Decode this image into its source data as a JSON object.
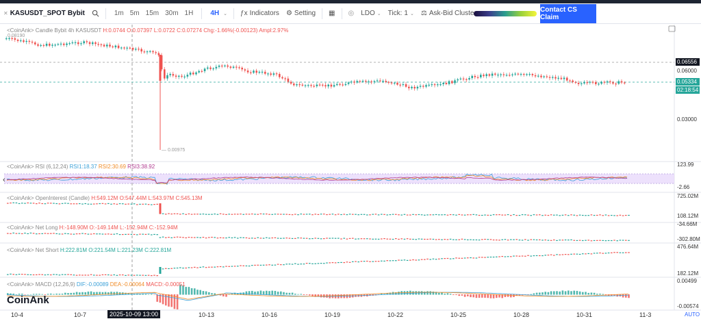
{
  "toolbar": {
    "symbol": "KASUSDT_SPOT",
    "exchange": "Bybit",
    "timeframes": [
      "1m",
      "5m",
      "15m",
      "30m",
      "1H",
      "4H"
    ],
    "active_timeframe": "4H",
    "indicators_label": "Indicators",
    "setting_label": "Setting",
    "ldo_label": "LDO",
    "tick_label": "Tick:",
    "tick_value": "1",
    "askbid_label": "Ask-Bid Cluster",
    "cta_label": "Contact CS Claim"
  },
  "main_pane": {
    "legend_source": "<CoinAnk> Candle",
    "legend_info": "Bybit 4h KASUSDT",
    "h": "H:0.0744",
    "o": "O:0.07397",
    "l": "L:0.0722",
    "c": "C:0.07274",
    "chg": "Chg:-1.66%(-0.00123)",
    "ampl": "Ampl:2.97%",
    "high_label": "0.08190",
    "low_label": "0.00975",
    "axis": [
      "0.06000",
      "0.03000"
    ],
    "tag_high": "0.06556",
    "tag_last": "0.05334",
    "tag_countdown": "02:18:54"
  },
  "rsi_pane": {
    "legend_source": "<CoinAnk> RSI",
    "params": "(6,12,24)",
    "rsi1": "RSI1:18.37",
    "rsi2": "RSI2:30.69",
    "rsi3": "RSI3:38.92",
    "axis_top": "123.99",
    "axis_bottom": "-2.66"
  },
  "oi_pane": {
    "legend_source": "<CoinAnk> OpenInterest (Candle)",
    "h": "H:549.12M",
    "o": "O:547.44M",
    "l": "L:543.97M",
    "c": "C:545.13M",
    "axis_top": "725.02M",
    "axis_bottom": "108.12M"
  },
  "netlong_pane": {
    "legend_source": "<CoinAnk> Net Long",
    "h": "H:-148.90M",
    "o": "O:-149.14M",
    "l": "L:-152.94M",
    "c": "C:-152.94M",
    "axis_top": "-34.66M",
    "axis_bottom": "-302.80M"
  },
  "netshort_pane": {
    "legend_source": "<CoinAnk> Net Short",
    "h": "H:222.81M",
    "o": "O:221.54M",
    "l": "L:221.23M",
    "c": "C:222.81M",
    "axis_top": "476.64M",
    "axis_bottom": "182.12M"
  },
  "macd_pane": {
    "legend_source": "<CoinAnk> MACD",
    "params": "(12,26,9)",
    "dif": "DIF:-0.00089",
    "dea": "DEA:-0.00064",
    "macd": "MACD:-0.00051",
    "axis_top": "0.00499",
    "axis_bottom": "-0.00574"
  },
  "x_axis": {
    "labels": [
      "10-4",
      "10-7",
      "10-13",
      "10-16",
      "10-19",
      "10-22",
      "10-25",
      "10-28",
      "10-31",
      "11-3"
    ],
    "crosshair": "2025-10-09 13:00"
  },
  "watermark": "CoinAnk",
  "auto_label": "AUTO",
  "colors": {
    "up": "#26a69a",
    "down": "#ef5350",
    "accent": "#2962ff"
  }
}
